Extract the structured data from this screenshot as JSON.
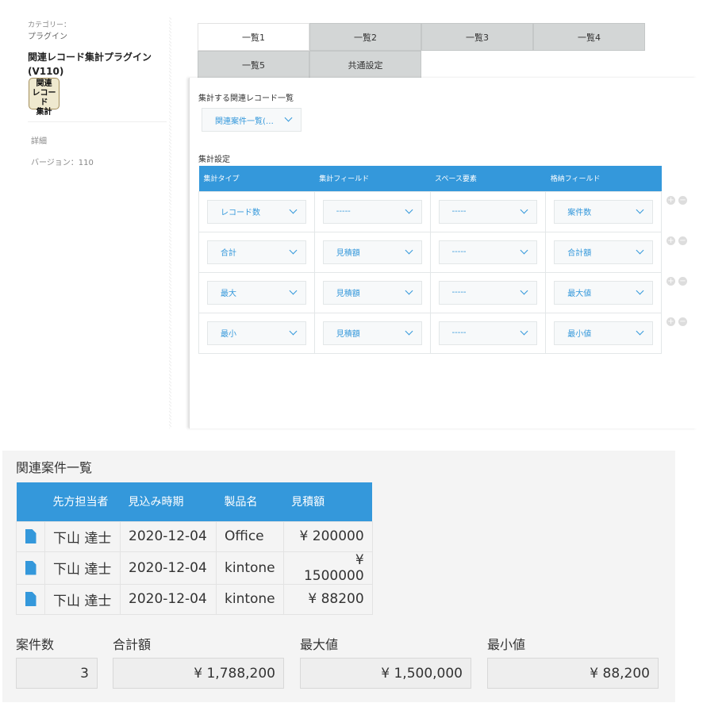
{
  "sidebar": {
    "category_label": "カテゴリー：",
    "category_value": "プラグイン",
    "plugin_title": "関連レコード集計プラグイン (V110)",
    "logo_text": "関連 レコード 集計",
    "details_link": "詳細",
    "version": "バージョン：110"
  },
  "tabs": [
    "一覧1",
    "一覧2",
    "一覧3",
    "一覧4",
    "一覧5",
    "共通設定"
  ],
  "active_tab": "一覧1",
  "settings": {
    "related_list_label": "集計する関連レコード一覧",
    "related_list_value": "関連案件一覧(…",
    "agg_settings_label": "集計設定",
    "columns": [
      "集計タイプ",
      "集計フィールド",
      "スペース要素",
      "格納フィールド"
    ],
    "rows": [
      [
        "レコード数",
        "-----",
        "-----",
        "案件数"
      ],
      [
        "合計",
        "見積額",
        "-----",
        "合計額"
      ],
      [
        "最大",
        "見積額",
        "-----",
        "最大値"
      ],
      [
        "最小",
        "見積額",
        "-----",
        "最小値"
      ]
    ]
  },
  "record_view": {
    "title": "関連案件一覧",
    "columns": [
      "",
      "先方担当者",
      "見込み時期",
      "製品名",
      "見積額"
    ],
    "rows": [
      [
        "下山 達士",
        "2020-12-04",
        "Office",
        "¥ 200000"
      ],
      [
        "下山 達士",
        "2020-12-04",
        "kintone",
        "¥ 1500000"
      ],
      [
        "下山 達士",
        "2020-12-04",
        "kintone",
        "¥ 88200"
      ]
    ],
    "summary": [
      {
        "label": "案件数",
        "value": "3"
      },
      {
        "label": "合計額",
        "value": "¥ 1,788,200"
      },
      {
        "label": "最大値",
        "value": "¥ 1,500,000"
      },
      {
        "label": "最小値",
        "value": "¥ 88,200"
      }
    ]
  },
  "colors": {
    "accent": "#3498db",
    "tab_inactive": "#d3d6d6",
    "background_gray": "#f4f4f4"
  }
}
